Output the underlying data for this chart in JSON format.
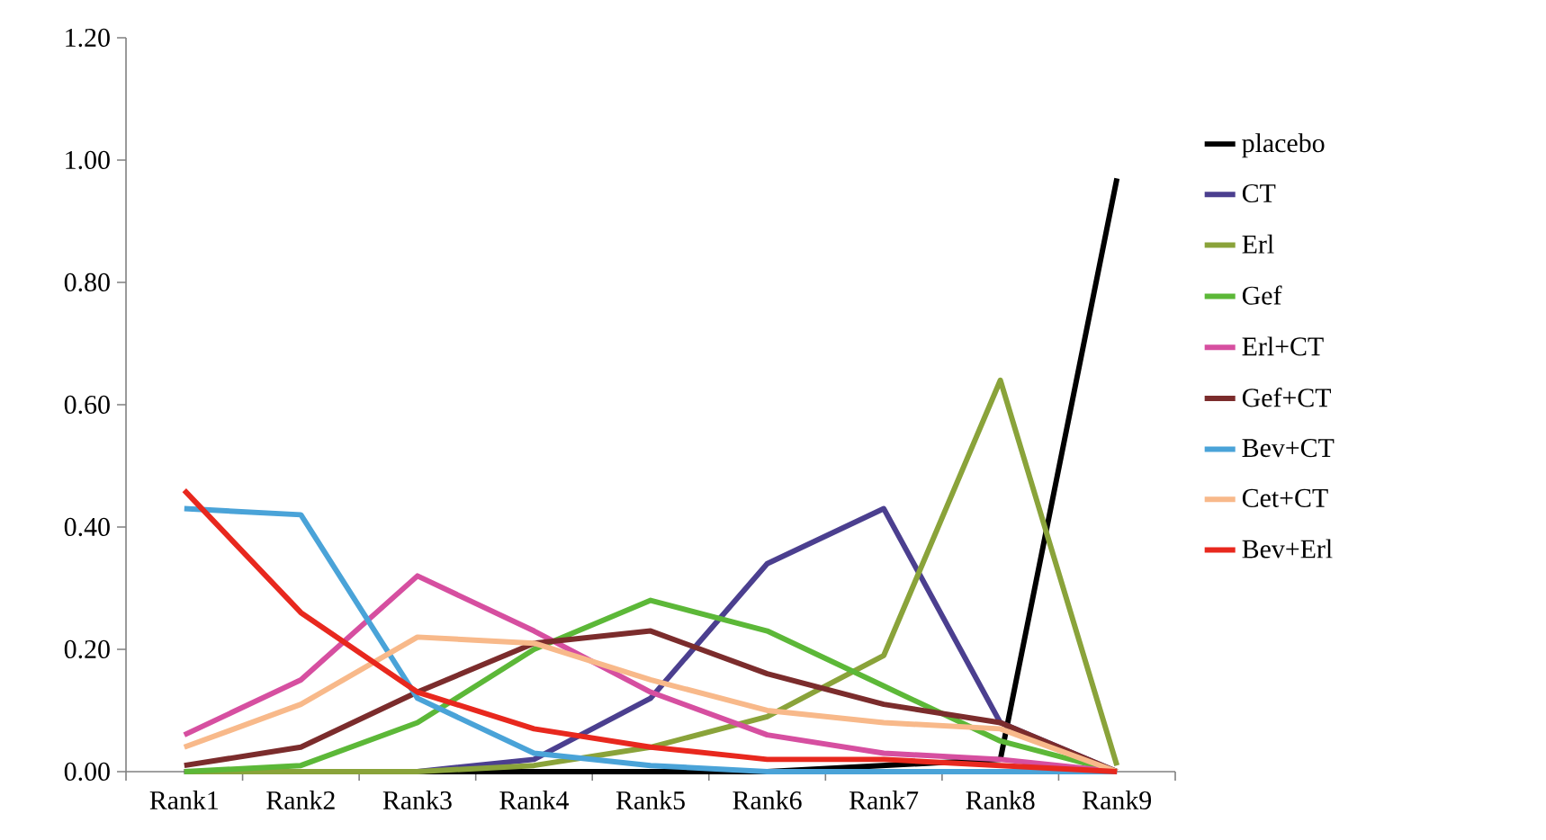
{
  "chart_data": {
    "type": "line",
    "categories": [
      "Rank1",
      "Rank2",
      "Rank3",
      "Rank4",
      "Rank5",
      "Rank6",
      "Rank7",
      "Rank8",
      "Rank9"
    ],
    "series": [
      {
        "name": "placebo",
        "color": "#000000",
        "values": [
          0,
          0,
          0,
          0,
          0,
          0,
          0.01,
          0.02,
          0.97
        ]
      },
      {
        "name": "CT",
        "color": "#4b3f8f",
        "values": [
          0,
          0,
          0,
          0.02,
          0.12,
          0.34,
          0.43,
          0.08,
          0
        ]
      },
      {
        "name": "Erl",
        "color": "#8aa33a",
        "values": [
          0,
          0,
          0,
          0.01,
          0.04,
          0.09,
          0.19,
          0.64,
          0.01
        ]
      },
      {
        "name": "Gef",
        "color": "#5cb838",
        "values": [
          0,
          0.01,
          0.08,
          0.2,
          0.28,
          0.23,
          0.14,
          0.05,
          0
        ]
      },
      {
        "name": "Erl+CT",
        "color": "#d64fa0",
        "values": [
          0.06,
          0.15,
          0.32,
          0.23,
          0.13,
          0.06,
          0.03,
          0.02,
          0
        ]
      },
      {
        "name": "Gef+CT",
        "color": "#7b2c2c",
        "values": [
          0.01,
          0.04,
          0.13,
          0.21,
          0.23,
          0.16,
          0.11,
          0.08,
          0
        ]
      },
      {
        "name": "Bev+CT",
        "color": "#4aa3d8",
        "values": [
          0.43,
          0.42,
          0.12,
          0.03,
          0.01,
          0,
          0,
          0,
          0
        ]
      },
      {
        "name": "Cet+CT",
        "color": "#f8b98a",
        "values": [
          0.04,
          0.11,
          0.22,
          0.21,
          0.15,
          0.1,
          0.08,
          0.07,
          0
        ]
      },
      {
        "name": "Bev+Erl",
        "color": "#e8281e",
        "values": [
          0.46,
          0.26,
          0.13,
          0.07,
          0.04,
          0.02,
          0.02,
          0.01,
          0
        ]
      }
    ],
    "ylim": [
      0,
      1.2
    ],
    "yticks": [
      {
        "value": 0,
        "label": "0.00"
      },
      {
        "value": 0.2,
        "label": "0.20"
      },
      {
        "value": 0.4,
        "label": "0.40"
      },
      {
        "value": 0.6,
        "label": "0.60"
      },
      {
        "value": 0.8,
        "label": "0.80"
      },
      {
        "value": 1.0,
        "label": "1.00"
      },
      {
        "value": 1.2,
        "label": "1.20"
      }
    ],
    "legend": "right",
    "grid": false,
    "marker": "none",
    "line_style": "solid"
  }
}
